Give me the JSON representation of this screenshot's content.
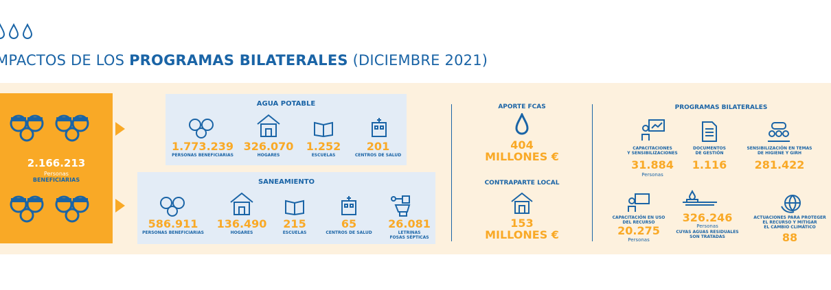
{
  "header": {
    "title_prefix": "MPACTOS DE LOS ",
    "title_bold": "PROGRAMAS BILATERALES",
    "title_suffix": " (DICIEMBRE 2021)"
  },
  "beneficiaries": {
    "count": "2.166.213",
    "sub1": "Personas",
    "sub2": "BENEFICIARIAS"
  },
  "agua": {
    "title": "AGUA POTABLE",
    "items": [
      {
        "value": "1.773.239",
        "label": "PERSONAS BENEFICIARIAS"
      },
      {
        "value": "326.070",
        "label": "HOGARES"
      },
      {
        "value": "1.252",
        "label": "ESCUELAS"
      },
      {
        "value": "201",
        "label": "CENTROS DE SALUD"
      }
    ]
  },
  "saneamiento": {
    "title": "SANEAMIENTO",
    "items": [
      {
        "value": "586.911",
        "label": "PERSONAS BENEFICIARIAS"
      },
      {
        "value": "136.490",
        "label": "HOGARES"
      },
      {
        "value": "215",
        "label": "ESCUELAS"
      },
      {
        "value": "65",
        "label": "CENTROS DE SALUD"
      },
      {
        "value": "26.081",
        "label": "LETRINAS",
        "label2": "FOSAS SÉPTICAS"
      }
    ]
  },
  "aporte": {
    "title": "APORTE FCAS",
    "value": "404",
    "unit": "MILLONES €"
  },
  "contraparte": {
    "title": "CONTRAPARTE LOCAL",
    "value": "153",
    "unit": "MILLONES €"
  },
  "programas": {
    "title": "PROGRAMAS BILATERALES",
    "cap": {
      "l1": "CAPACITACIONES",
      "l2": "Y SENSIBILIZACIONES",
      "value": "31.884",
      "sub": "Personas"
    },
    "docs": {
      "l1": "DOCUMENTOS",
      "l2": "DE GESTIÓN",
      "value": "1.116"
    },
    "sens": {
      "l1": "SENSIBILIZACIÓN EN TEMAS",
      "l2": "DE HIGIENE Y GIRH",
      "value": "281.422"
    },
    "capuso": {
      "l1": "CAPACITACIÓN EN USO",
      "l2": "DEL RECURSO",
      "value": "20.275",
      "sub": "Personas"
    },
    "aguas": {
      "value": "326.246",
      "sub": "Personas",
      "l1": "CUYAS AGUAS RESIDUALES",
      "l2": "SON TRATADAS"
    },
    "actu": {
      "l1": "ACTUACIONES PARA PROTEGER",
      "l2": "EL RECURSO Y MITIGAR",
      "l3": "EL CAMBIO CLIMÁTICO",
      "value": "88"
    }
  }
}
